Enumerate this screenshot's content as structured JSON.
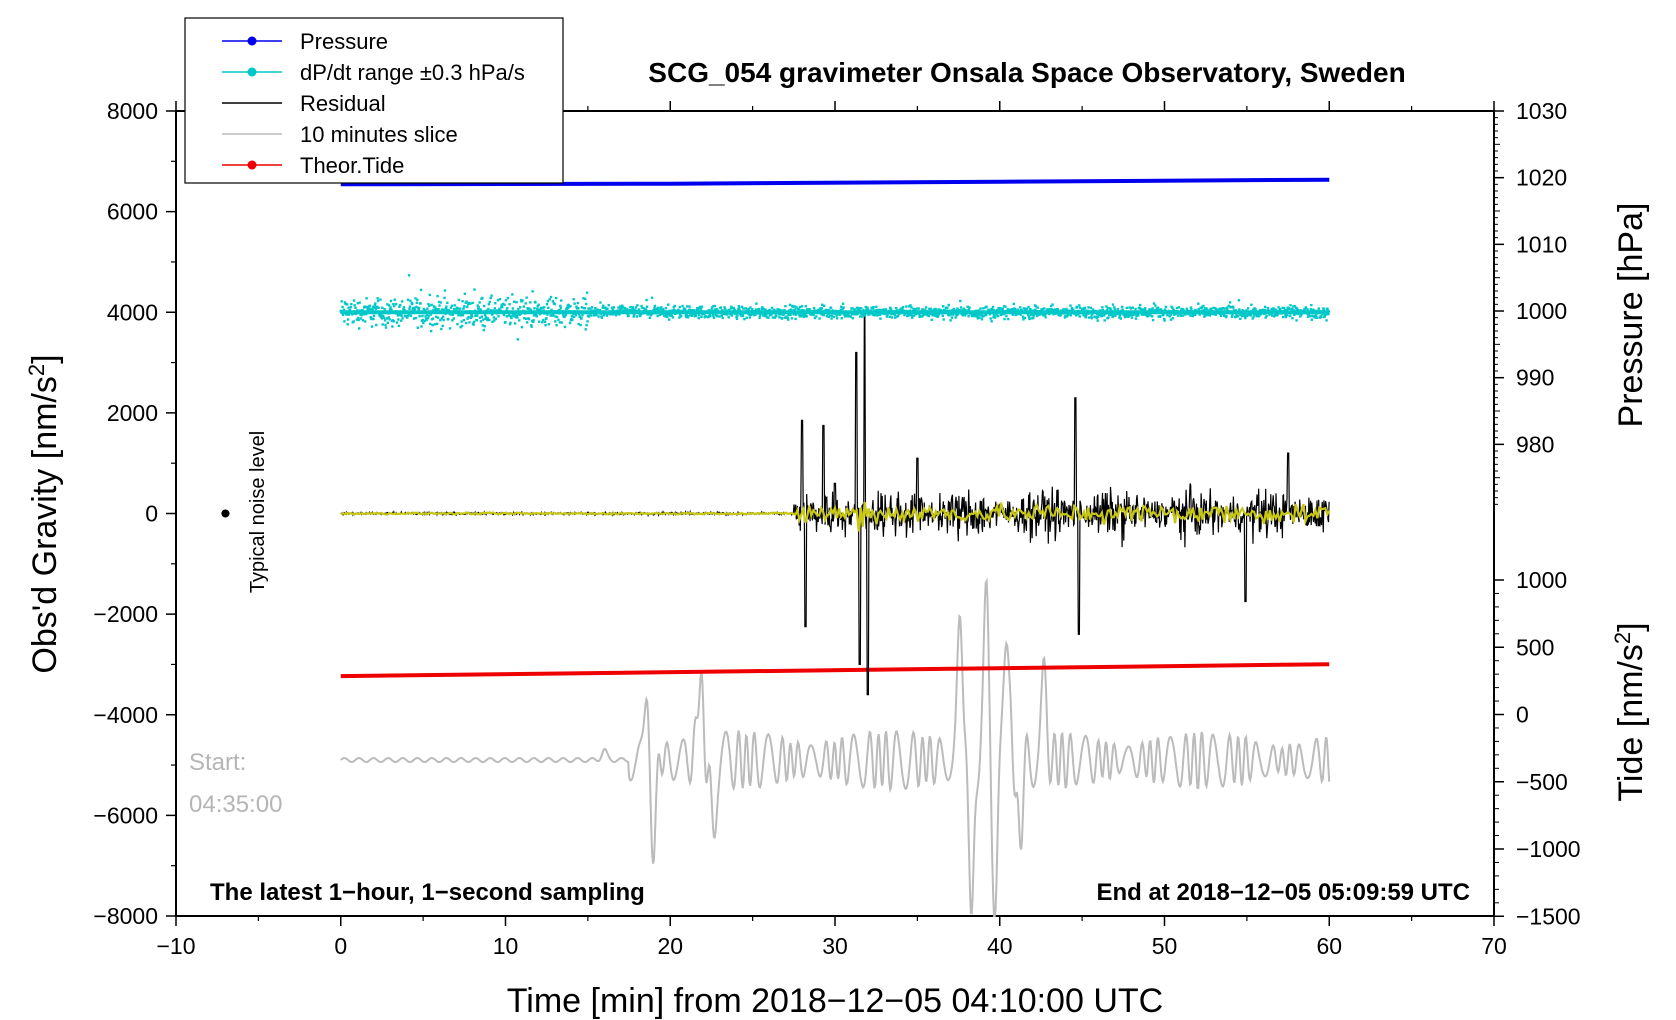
{
  "chart_data": {
    "type": "line",
    "title": "SCG_054 gravimeter Onsala Space Observatory, Sweden",
    "xlabel": "Time [min] from 2018−12−05 04:10:00 UTC",
    "ylabel_left": "Obs'd Gravity [nm/s",
    "ylabel_left_sup": "2",
    "ylabel_left_end": "]",
    "ylabel_right_pressure": "Pressure [hPa]",
    "ylabel_right_tide": "Tide [nm/s",
    "ylabel_right_tide_sup": "2",
    "ylabel_right_tide_end": "]",
    "xlim": [
      -10,
      70
    ],
    "ylim": [
      -8000,
      8000
    ],
    "pressure_lim": [
      970,
      1030
    ],
    "tide_lim": [
      -1500,
      1000
    ],
    "x_ticks": [
      "−10",
      "0",
      "10",
      "20",
      "30",
      "40",
      "50",
      "60",
      "70"
    ],
    "y_ticks": [
      "8000",
      "6000",
      "4000",
      "2000",
      "0",
      "−2000",
      "−4000",
      "−6000",
      "−8000"
    ],
    "pressure_ticks": [
      "1030",
      "1020",
      "1010",
      "1000",
      "990",
      "980"
    ],
    "tide_ticks": [
      "1000",
      "500",
      "0",
      "−500",
      "−1000",
      "−1500"
    ],
    "legend": [
      {
        "label": "Pressure",
        "color": "#0000ee",
        "marker": true
      },
      {
        "label": "dP/dt range ±0.3 hPa/s",
        "color": "#00c8c8",
        "marker": true
      },
      {
        "label": "Residual",
        "color": "#000000",
        "marker": false
      },
      {
        "label": "10 minutes slice",
        "color": "#bbbbbb",
        "marker": false
      },
      {
        "label": "Theor.Tide",
        "color": "#ee0000",
        "marker": true
      }
    ],
    "series": [
      {
        "name": "Pressure",
        "color": "#0000ee",
        "axis": "pressure",
        "x": [
          0,
          20,
          40,
          60
        ],
        "values": [
          1019.0,
          1019.1,
          1019.4,
          1019.7
        ]
      },
      {
        "name": "dP/dt range ±0.3 hPa/s",
        "color": "#00c8c8",
        "axis": "left",
        "center": 4000,
        "spread": [
          [
            0,
            15,
            420
          ],
          [
            15,
            60,
            180
          ]
        ]
      },
      {
        "name": "Residual",
        "color": "#000000",
        "axis": "left",
        "quiet_until": 27.5,
        "quiet_amp": 40,
        "active_amp": 600,
        "spikes": [
          [
            28.0,
            1850
          ],
          [
            28.2,
            -2250
          ],
          [
            29.3,
            1750
          ],
          [
            30.0,
            600
          ],
          [
            31.3,
            3200
          ],
          [
            31.5,
            -3000
          ],
          [
            31.8,
            3900
          ],
          [
            32.0,
            -3600
          ],
          [
            35.0,
            1100
          ],
          [
            44.6,
            2300
          ],
          [
            44.8,
            -2400
          ],
          [
            54.9,
            -1750
          ],
          [
            57.5,
            1200
          ]
        ]
      },
      {
        "name": "Residual (filtered)",
        "color": "#c8c814",
        "axis": "left"
      },
      {
        "name": "10 minutes slice",
        "color": "#bbbbbb",
        "axis": "left",
        "baseline": -4900,
        "events": [
          [
            16.0,
            -4700
          ],
          [
            18.6,
            -3100
          ],
          [
            18.9,
            -7200
          ],
          [
            21.8,
            -3200
          ],
          [
            22.6,
            -6300
          ],
          [
            37.6,
            -2000
          ],
          [
            38.3,
            -7900
          ],
          [
            39.2,
            -1300
          ],
          [
            39.7,
            -8000
          ],
          [
            40.4,
            -2100
          ],
          [
            41.2,
            -6500
          ],
          [
            42.7,
            -3400
          ]
        ]
      },
      {
        "name": "Theor.Tide",
        "color": "#ee0000",
        "axis": "tide",
        "x": [
          0,
          60
        ],
        "values": [
          285,
          374
        ]
      }
    ],
    "noise_marker": {
      "x": -7.0,
      "y": 0,
      "label": "Typical noise level"
    },
    "start_label_1": "Start:",
    "start_label_2": "04:35:00",
    "note_left": "The latest 1−hour, 1−second sampling",
    "note_right": "End at 2018−12−05 05:09:59 UTC"
  }
}
